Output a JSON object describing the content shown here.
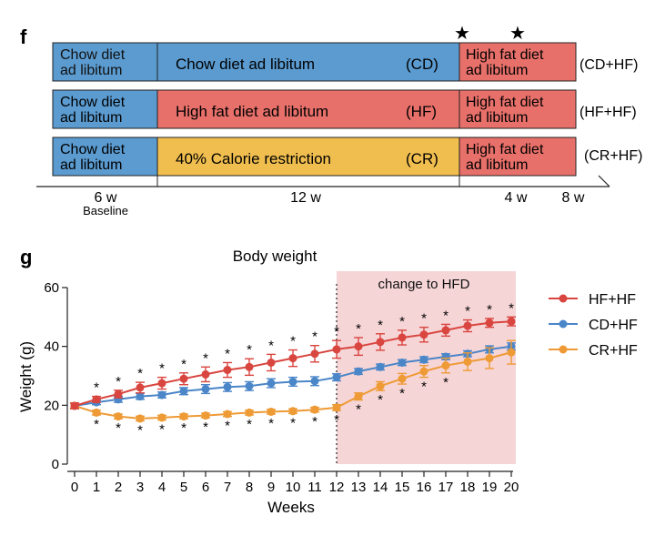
{
  "panel_f": {
    "panel_label": "f",
    "rows": [
      {
        "baseline": [
          "Chow diet",
          "ad libitum"
        ],
        "middle": "Chow diet ad libitum",
        "middle_code": "(CD)",
        "after": [
          "High fat diet",
          "ad libitum"
        ],
        "group": "(CD+HF)"
      },
      {
        "baseline": [
          "Chow diet",
          "ad libitum"
        ],
        "middle": "High fat diet ad libitum",
        "middle_code": "(HF)",
        "after": [
          "High fat diet",
          "ad libitum"
        ],
        "group": "(HF+HF)"
      },
      {
        "baseline": [
          "Chow diet",
          "ad libitum"
        ],
        "middle": "40% Calorie restriction",
        "middle_code": "(CR)",
        "after": [
          "High fat diet",
          "ad libitum"
        ],
        "group": "(CR+HF)"
      }
    ],
    "timeline": {
      "seg1": "6 w",
      "seg1_sub": "Baseline",
      "seg2": "12 w",
      "seg3": "4 w",
      "seg4": "8 w"
    },
    "stars": [
      "★",
      "★"
    ],
    "colors": {
      "baseline": "#5b9bd0",
      "chow": "#5b9bd0",
      "hf": "#e8706a",
      "cr": "#f0be4f",
      "after": "#e8706a"
    }
  },
  "chart_data": {
    "type": "line",
    "panel_label": "g",
    "title": "Body weight",
    "xlabel": "Weeks",
    "ylabel": "Weight (g)",
    "xlim": [
      0,
      20
    ],
    "ylim": [
      0,
      60
    ],
    "xticks": [
      0,
      1,
      2,
      3,
      4,
      5,
      6,
      7,
      8,
      9,
      10,
      11,
      12,
      13,
      14,
      15,
      16,
      17,
      18,
      19,
      20
    ],
    "yticks": [
      0,
      20,
      40,
      60
    ],
    "grid": false,
    "legend_position": "right",
    "x": [
      0,
      1,
      2,
      3,
      4,
      5,
      6,
      7,
      8,
      9,
      10,
      11,
      12,
      13,
      14,
      15,
      16,
      17,
      18,
      19,
      20
    ],
    "shaded_region": {
      "x_from": 12,
      "x_to": 20,
      "label": "change to HFD",
      "color": "#f6d5d7"
    },
    "vertical_marker_x": 12,
    "significance_marker": "*",
    "series": [
      {
        "name": "HF+HF",
        "color": "#d9453f",
        "values": [
          19.8,
          22.0,
          23.8,
          26.0,
          27.5,
          29.0,
          30.5,
          32.0,
          33.0,
          34.5,
          36.0,
          37.5,
          39.0,
          40.0,
          41.5,
          43.0,
          44.0,
          45.5,
          47.0,
          48.0,
          48.5
        ],
        "errors": [
          1.0,
          1.0,
          1.3,
          1.8,
          2.0,
          2.0,
          2.5,
          2.5,
          2.8,
          2.8,
          2.8,
          2.8,
          3.0,
          3.0,
          2.8,
          2.5,
          2.5,
          2.0,
          2.0,
          1.5,
          1.5
        ],
        "markers_above": [
          1,
          2,
          3,
          4,
          5,
          6,
          7,
          8,
          9,
          10,
          11,
          12,
          13,
          14,
          15,
          16,
          17,
          18,
          19,
          20
        ]
      },
      {
        "name": "CD+HF",
        "color": "#4a86c8",
        "values": [
          19.8,
          21.0,
          22.0,
          23.0,
          23.5,
          24.8,
          25.5,
          26.2,
          26.5,
          27.5,
          28.0,
          28.2,
          29.5,
          31.5,
          33.0,
          34.5,
          35.5,
          36.5,
          37.5,
          39.0,
          40.0
        ],
        "errors": [
          0.8,
          0.8,
          1.0,
          1.0,
          1.0,
          1.2,
          1.5,
          1.5,
          1.5,
          1.5,
          1.5,
          1.5,
          1.2,
          1.0,
          1.0,
          1.0,
          1.0,
          1.0,
          1.0,
          1.2,
          1.2
        ],
        "markers_above": []
      },
      {
        "name": "CR+HF",
        "color": "#ee9a35",
        "values": [
          19.8,
          17.5,
          16.2,
          15.5,
          15.8,
          16.2,
          16.5,
          17.0,
          17.5,
          17.8,
          18.0,
          18.5,
          19.2,
          23.0,
          26.5,
          29.0,
          31.5,
          33.5,
          34.8,
          36.0,
          38.0
        ],
        "errors": [
          0.8,
          0.8,
          0.8,
          0.8,
          0.8,
          0.8,
          0.8,
          0.8,
          0.8,
          0.8,
          0.8,
          0.8,
          1.0,
          1.2,
          1.5,
          1.8,
          2.0,
          2.5,
          3.0,
          3.5,
          4.0
        ],
        "markers_below": [
          1,
          2,
          3,
          4,
          5,
          6,
          7,
          8,
          9,
          10,
          11,
          12,
          13,
          14,
          15,
          16,
          17
        ]
      }
    ]
  }
}
